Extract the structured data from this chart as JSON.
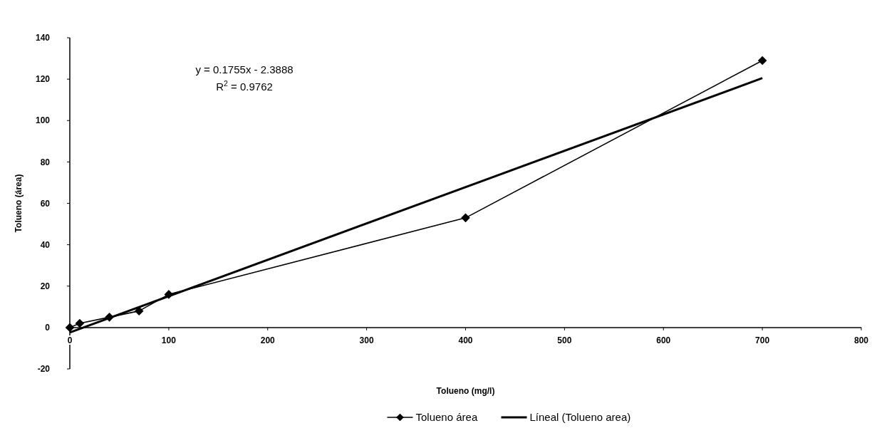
{
  "chart_data": {
    "type": "line",
    "xlabel": "Tolueno (mg/l)",
    "ylabel": "Tolueno (área)",
    "xlim": [
      0,
      800
    ],
    "xticks": [
      0,
      100,
      200,
      300,
      400,
      500,
      600,
      700,
      800
    ],
    "ylim": [
      -20,
      140
    ],
    "yticks": [
      -20,
      0,
      20,
      40,
      60,
      80,
      100,
      120,
      140
    ],
    "grid": false,
    "legend": "bottom",
    "annotations": [
      "y = 0.1755x - 2.3888",
      "R$^{2}$ = 0.9762"
    ],
    "series": [
      {
        "name": "Tolueno área",
        "color": "#000000",
        "marker": "diamond",
        "x": [
          0,
          10,
          40,
          70,
          100,
          400,
          700
        ],
        "values": [
          0,
          2,
          5,
          8,
          16,
          53,
          129
        ]
      },
      {
        "name": "Líneal (Tolueno area)",
        "color": "#000000",
        "marker": "none",
        "x": [
          0,
          700
        ],
        "values": [
          -2.4,
          120.5
        ]
      }
    ]
  }
}
